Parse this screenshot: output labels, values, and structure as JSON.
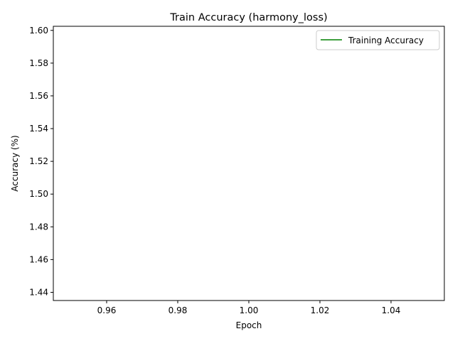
{
  "chart_data": {
    "type": "line",
    "title": "Train Accuracy (harmony_loss)",
    "xlabel": "Epoch",
    "ylabel": "Accuracy (%)",
    "xlim": [
      0.945,
      1.055
    ],
    "ylim": [
      1.435,
      1.6025
    ],
    "x_ticks": [
      0.96,
      0.98,
      1.0,
      1.02,
      1.04
    ],
    "x_tick_labels": [
      "0.96",
      "0.98",
      "1.00",
      "1.02",
      "1.04"
    ],
    "y_ticks": [
      1.44,
      1.46,
      1.48,
      1.5,
      1.52,
      1.54,
      1.56,
      1.58,
      1.6
    ],
    "y_tick_labels": [
      "1.44",
      "1.46",
      "1.48",
      "1.50",
      "1.52",
      "1.54",
      "1.56",
      "1.58",
      "1.60"
    ],
    "series": [
      {
        "name": "Training Accuracy",
        "color": "#008000",
        "x": [],
        "y": []
      }
    ],
    "legend_position": "top-right",
    "grid": false
  }
}
